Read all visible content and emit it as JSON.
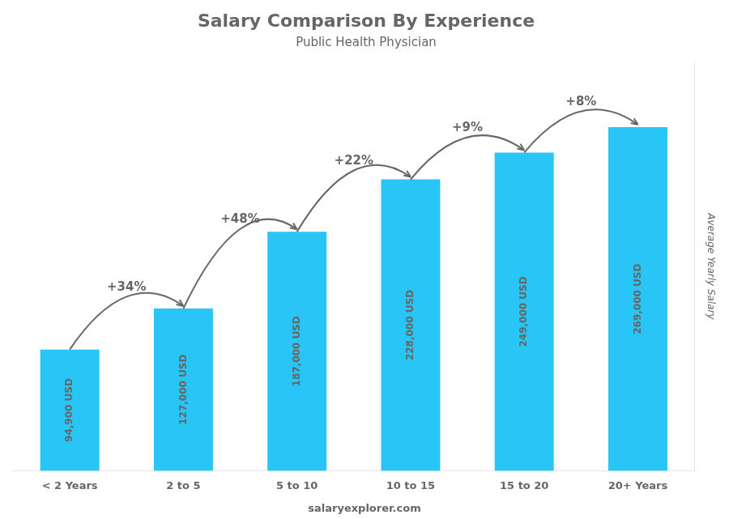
{
  "chart_data": {
    "type": "bar",
    "title": "Salary Comparison By Experience",
    "subtitle": "Public Health Physician",
    "ylabel": "Average Yearly Salary",
    "categories": [
      "< 2 Years",
      "2 to 5",
      "5 to 10",
      "10 to 15",
      "15 to 20",
      "20+ Years"
    ],
    "values": [
      94900,
      127000,
      187000,
      228000,
      249000,
      269000
    ],
    "value_labels": [
      "94,900 USD",
      "127,000 USD",
      "187,000 USD",
      "228,000 USD",
      "249,000 USD",
      "269,000 USD"
    ],
    "data_labels": true,
    "color": "#29c5f6",
    "ylim": [
      0,
      320000
    ],
    "grid": false,
    "tick_labels": "x",
    "annotations": [
      {
        "text": "+34%",
        "from": "< 2 Years",
        "to": "2 to 5"
      },
      {
        "text": "+48%",
        "from": "2 to 5",
        "to": "5 to 10"
      },
      {
        "text": "+22%",
        "from": "5 to 10",
        "to": "10 to 15"
      },
      {
        "text": "+9%",
        "from": "10 to 15",
        "to": "15 to 20"
      },
      {
        "text": "+8%",
        "from": "15 to 20",
        "to": "20+ Years"
      }
    ],
    "watermark": "salaryexplorer.com"
  }
}
